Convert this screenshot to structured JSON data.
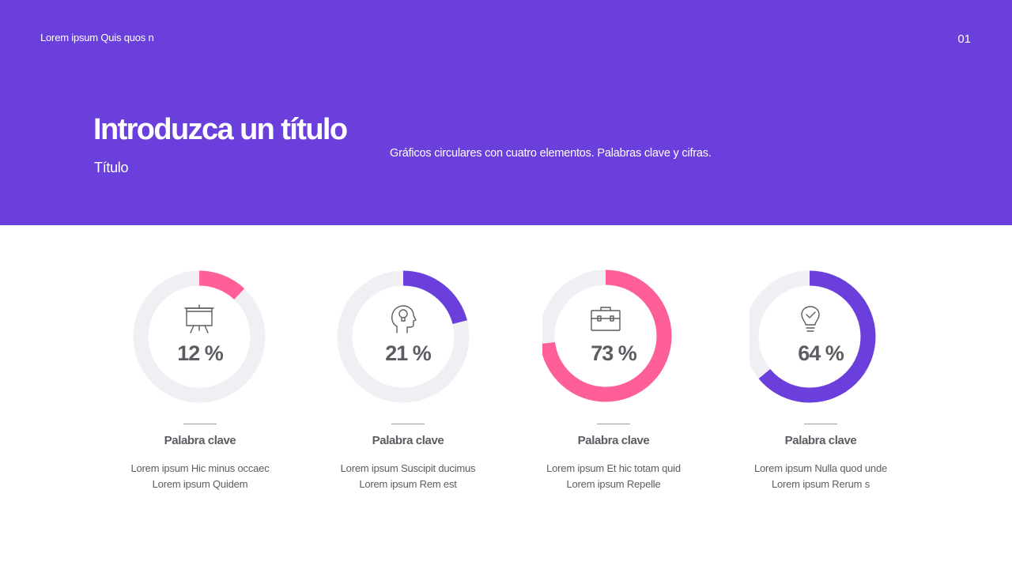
{
  "header": {
    "label": "Lorem ipsum Quis quos n",
    "page_number": "01",
    "title": "Introduzca un título",
    "subtitle": "Título",
    "description": "Gráficos circulares con cuatro elementos. Palabras clave y cifras."
  },
  "colors": {
    "header_bg": "#6a3fdb",
    "pink": "#ff5f98",
    "purple": "#6a3fdb",
    "track": "#f1eff3"
  },
  "cards": [
    {
      "value_label": "12 %",
      "keyword": "Palabra clave",
      "line1": "Lorem ipsum Hic minus occaec",
      "line2": "Lorem ipsum Quidem",
      "icon": "presentation-board-icon"
    },
    {
      "value_label": "21 %",
      "keyword": "Palabra clave",
      "line1": "Lorem ipsum Suscipit ducimus",
      "line2": "Lorem ipsum Rem est",
      "icon": "head-idea-icon"
    },
    {
      "value_label": "73 %",
      "keyword": "Palabra clave",
      "line1": "Lorem ipsum Et hic totam quid",
      "line2": "Lorem ipsum Repelle",
      "icon": "briefcase-icon"
    },
    {
      "value_label": "64 %",
      "keyword": "Palabra clave",
      "line1": "Lorem ipsum Nulla quod unde",
      "line2": "Lorem ipsum Rerum s",
      "icon": "lightbulb-check-icon"
    }
  ],
  "chart_data": {
    "type": "pie",
    "charts": [
      {
        "value": 12,
        "color": "#ff5f98"
      },
      {
        "value": 21,
        "color": "#6a3fdb"
      },
      {
        "value": 73,
        "color": "#ff5f98"
      },
      {
        "value": 64,
        "color": "#6a3fdb"
      }
    ],
    "max": 100
  }
}
